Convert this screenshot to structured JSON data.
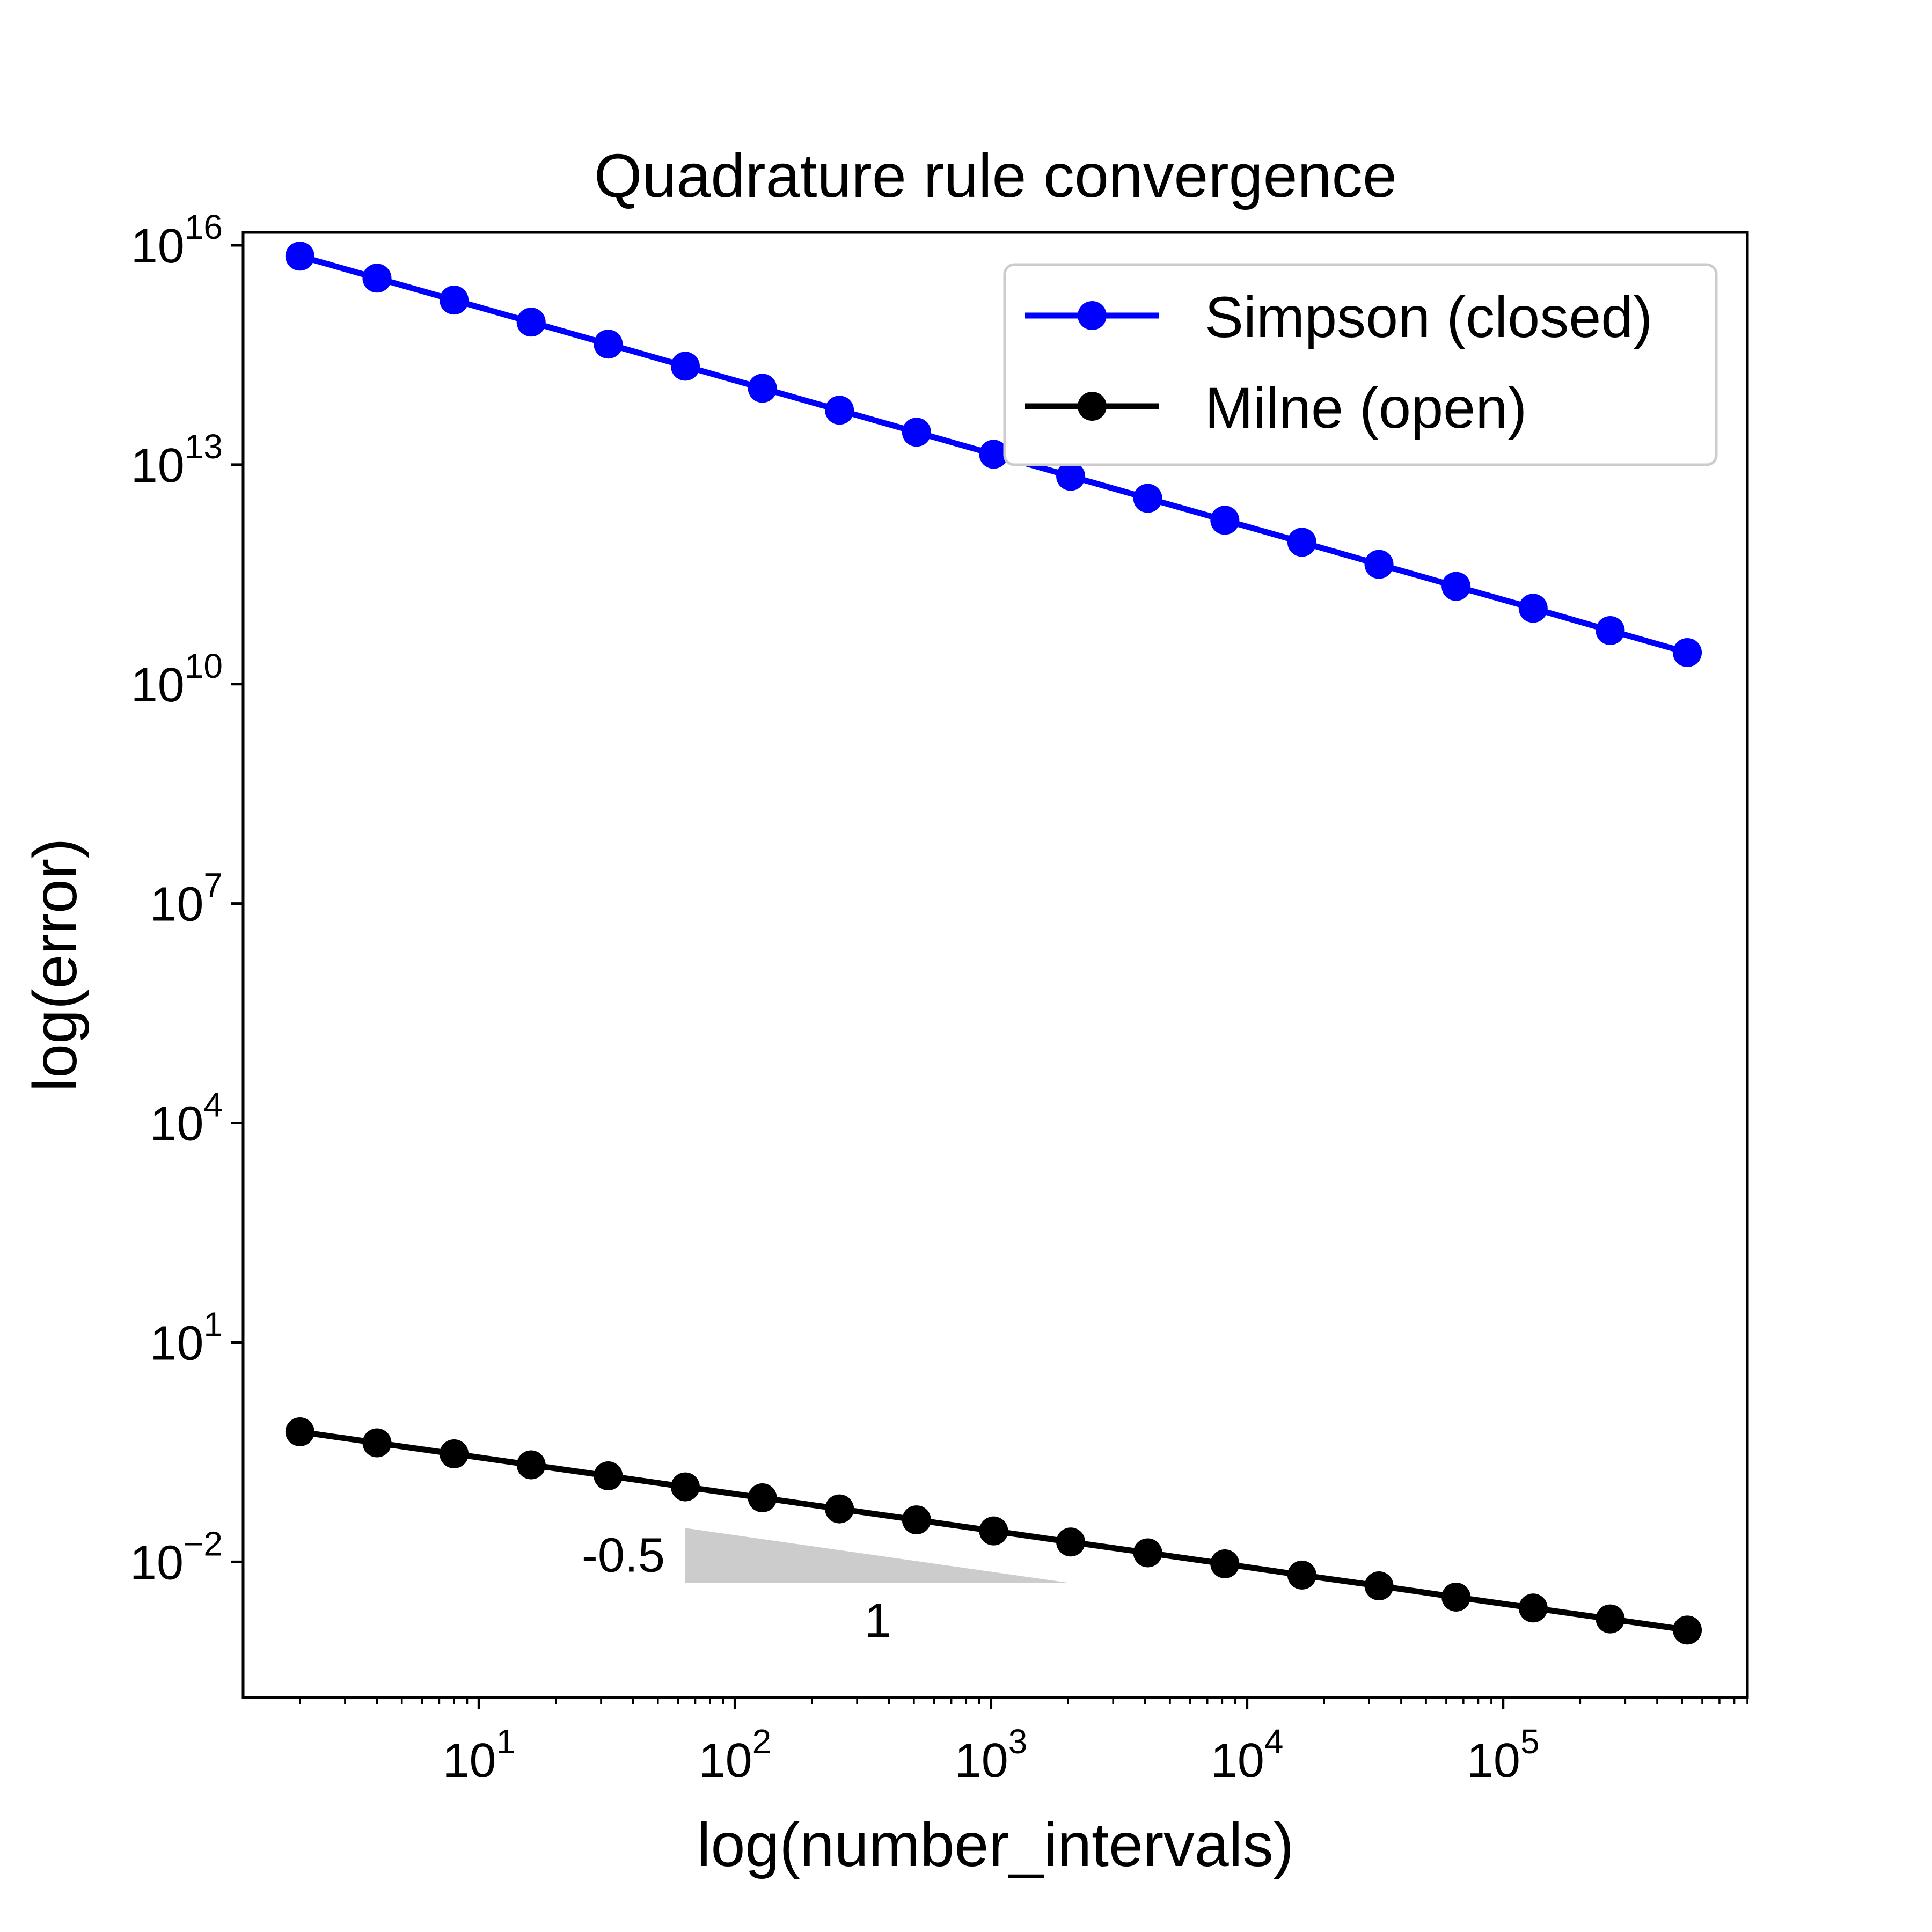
{
  "chart_data": {
    "type": "line",
    "title": "Quadrature rule convergence",
    "xlabel": "log(number_intervals)",
    "ylabel": "log(error)",
    "xscale": "log",
    "yscale": "log",
    "xlim": [
      1.2,
      900000
    ],
    "ylim": [
      0.00014,
      1.5e+16
    ],
    "grid": false,
    "legend_position": "top-right",
    "x_ticks": [
      {
        "value": 10,
        "base": "10",
        "exp": "1"
      },
      {
        "value": 100,
        "base": "10",
        "exp": "2"
      },
      {
        "value": 1000,
        "base": "10",
        "exp": "3"
      },
      {
        "value": 10000,
        "base": "10",
        "exp": "4"
      },
      {
        "value": 100000,
        "base": "10",
        "exp": "5"
      }
    ],
    "y_ticks": [
      {
        "value": 0.01,
        "base": "10",
        "exp": "−2"
      },
      {
        "value": 10,
        "base": "10",
        "exp": "1"
      },
      {
        "value": 10000,
        "base": "10",
        "exp": "4"
      },
      {
        "value": 10000000,
        "base": "10",
        "exp": "7"
      },
      {
        "value": 10000000000,
        "base": "10",
        "exp": "10"
      },
      {
        "value": 10000000000000,
        "base": "10",
        "exp": "13"
      },
      {
        "value": 10000000000000000,
        "base": "10",
        "exp": "16"
      }
    ],
    "x": [
      2,
      4,
      8,
      16,
      32,
      64,
      128,
      256,
      512,
      1024,
      2048,
      4096,
      8192,
      16384,
      32768,
      65536,
      131072,
      262144,
      524288
    ],
    "series": [
      {
        "name": "Simpson (closed)",
        "color": "#0000ff",
        "values": [
          7100000000000000.0,
          3550000000000000.0,
          1780000000000000.0,
          890000000000000.0,
          445000000000000.0,
          222000000000000.0,
          111000000000000.0,
          55600000000000.0,
          27800000000000.0,
          13900000000000.0,
          6950000000000.0,
          3470000000000.0,
          1740000000000.0,
          870000000000.0,
          434000000000.0,
          217000000000.0,
          109000000000.0,
          54000000000.0,
          27000000000.0
        ]
      },
      {
        "name": "Milne (open)",
        "color": "#000000",
        "values": [
          0.6,
          0.424,
          0.3,
          0.212,
          0.15,
          0.106,
          0.075,
          0.053,
          0.0375,
          0.0265,
          0.0187,
          0.0133,
          0.0094,
          0.0066,
          0.0047,
          0.0033,
          0.00234,
          0.00166,
          0.00117
        ]
      }
    ],
    "slope_triangle": {
      "x_start": 64,
      "x_end": 2048,
      "y_top": 0.029,
      "color": "#cccccc",
      "slope_label": "-0.5",
      "run_label": "1"
    }
  }
}
